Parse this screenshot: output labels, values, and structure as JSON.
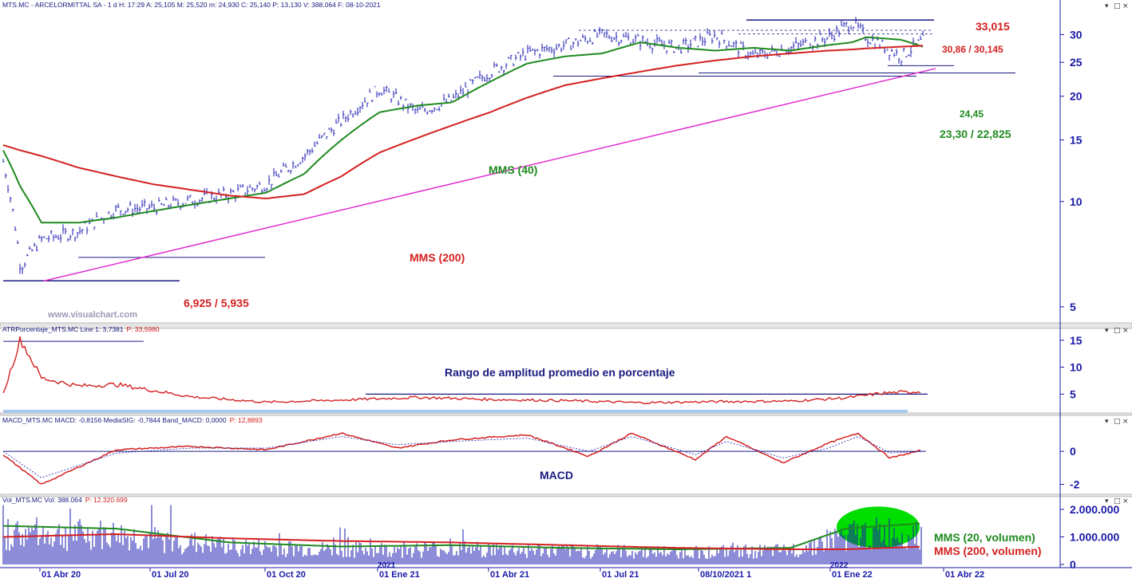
{
  "colors": {
    "price": "#1a1ab0",
    "mms40": "#1f8a1f",
    "mms200": "#d42020",
    "trend": "#e030d0",
    "atr": "#d42020",
    "macd": "#d42020",
    "signal": "#1a1ab0",
    "vol_bar": "#1a1ab0",
    "annotation_red": "#d42020",
    "annotation_green": "#1f8a1f",
    "annotation_blue": "#1a1a80",
    "axis": "#1a1aa8",
    "band": "#a8c8ee",
    "highlight": "#00dd00"
  },
  "panels": {
    "price": {
      "header": "MTS.MC - ARCELORMITTAL SA -  1 d  H: 17:29  A: 25,105  M: 25,520  m: 24,930  C: 25,140  P: 13,130  V: 388.064  F: 08-10-2021",
      "watermark": "www.visualchart.com",
      "labels": {
        "resistance": "33,015",
        "range_top": "30,86 / 30,145",
        "support_short": "24,45",
        "support": "23,30 / 22,825",
        "mms40": "MMS (40)",
        "mms200": "MMS (200)",
        "low": "6,925 / 5,935"
      }
    },
    "atr": {
      "header_name": "ATRPorcentaje_MTS.MC  Line 1: 3,7381",
      "header_p": "P: 33,5980",
      "title": "Rango de amplitud promedio en porcentaje"
    },
    "macd": {
      "header_name": "MACD_MTS.MC  MACD: -0,8156  MediaSIG: -0,7844  Band_MACD: 0,0000",
      "header_p": "P: 12,8893",
      "title": "MACD"
    },
    "volume": {
      "header_name": "Vol_MTS.MC  Vol: 388.064",
      "header_p": "P: 12.320.699",
      "label_mms20": "MMS (20, volumen)",
      "label_mms200": "MMS (200, volumen)"
    }
  },
  "controls": {
    "minimize": "▾",
    "restore": "□",
    "close": "×"
  },
  "x_axis": {
    "labels": [
      "01 Abr 20",
      "01 Jul 20",
      "01 Oct 20",
      "01 Ene 21",
      "01 Abr 21",
      "01 Jul 21",
      "08/10/2021 1",
      "01 Ene 22",
      "01 Abr 22"
    ],
    "year_markers": [
      "2021",
      "2022"
    ]
  },
  "chart_data": [
    {
      "type": "line",
      "name": "price",
      "y_scale": "log",
      "ylim": [
        4.5,
        35
      ],
      "y_ticks": [
        5,
        10,
        15,
        20,
        25,
        30
      ],
      "x_ticks": [
        "01 Abr 20",
        "01 Jul 20",
        "01 Oct 20",
        "01 Ene 21",
        "01 Abr 21",
        "01 Jul 21",
        "08/10/2021 1",
        "01 Ene 22",
        "01 Abr 22"
      ],
      "x": [
        "2020-03-01",
        "2020-03-15",
        "2020-04-01",
        "2020-05-01",
        "2020-06-01",
        "2020-07-01",
        "2020-08-01",
        "2020-09-01",
        "2020-10-01",
        "2020-11-01",
        "2020-12-01",
        "2021-01-01",
        "2021-02-01",
        "2021-03-01",
        "2021-04-01",
        "2021-05-01",
        "2021-06-01",
        "2021-07-01",
        "2021-08-01",
        "2021-09-01",
        "2021-10-01",
        "2021-11-01",
        "2021-12-01",
        "2022-01-01",
        "2022-01-20",
        "2022-02-01",
        "2022-03-01",
        "2022-03-20"
      ],
      "series": [
        {
          "name": "price",
          "values": [
            13.0,
            6.5,
            7.8,
            8.2,
            9.5,
            9.6,
            10.1,
            10.5,
            11.2,
            13.5,
            17.0,
            21.0,
            18.0,
            19.5,
            23.5,
            26.5,
            28.0,
            30.0,
            28.8,
            27.5,
            29.8,
            26.0,
            27.5,
            29.5,
            32.5,
            29.5,
            26.0,
            29.0
          ]
        },
        {
          "name": "MMS (40)",
          "values": [
            14.0,
            11.0,
            8.7,
            8.7,
            9.0,
            9.4,
            9.8,
            10.2,
            10.6,
            12.0,
            15.0,
            18.0,
            18.8,
            19.2,
            22.0,
            24.8,
            26.0,
            26.5,
            28.5,
            27.5,
            27.0,
            27.5,
            27.0,
            28.0,
            28.5,
            29.5,
            29.0,
            27.6
          ]
        },
        {
          "name": "MMS (200)",
          "values": [
            14.5,
            14.0,
            13.5,
            12.5,
            11.8,
            11.2,
            10.8,
            10.4,
            10.2,
            10.5,
            11.8,
            13.8,
            15.2,
            16.5,
            18.0,
            19.8,
            21.5,
            22.5,
            23.5,
            24.5,
            25.3,
            26.0,
            26.5,
            27.0,
            27.2,
            27.4,
            27.7,
            27.9
          ]
        }
      ],
      "annotations": [
        "33,015",
        "30,86 / 30,145",
        "24,45",
        "23,30 / 22,825",
        "6,925 / 5,935",
        "MMS (40)",
        "MMS (200)"
      ],
      "grid": false
    },
    {
      "type": "line",
      "name": "ATR %",
      "title": "Rango de amplitud promedio en porcentaje",
      "ylim": [
        1.5,
        16
      ],
      "y_ticks": [
        5,
        10,
        15
      ],
      "x": [
        "2020-03-01",
        "2020-03-15",
        "2020-04-01",
        "2020-05-01",
        "2020-06-01",
        "2020-08-01",
        "2020-10-01",
        "2020-12-01",
        "2021-02-01",
        "2021-04-01",
        "2021-06-01",
        "2021-08-01",
        "2021-10-01",
        "2021-12-01",
        "2022-01-15",
        "2022-02-15",
        "2022-03-20"
      ],
      "values": [
        5.0,
        15.2,
        8.0,
        6.5,
        6.8,
        4.5,
        3.5,
        3.9,
        4.4,
        4.0,
        3.8,
        3.4,
        3.6,
        3.7,
        4.3,
        5.2,
        5.5
      ]
    },
    {
      "type": "line",
      "name": "MACD",
      "title": "MACD",
      "ylim": [
        -2.6,
        1.6
      ],
      "y_ticks": [
        -2,
        0
      ],
      "x": [
        "2020-03-01",
        "2020-04-01",
        "2020-06-01",
        "2020-08-01",
        "2020-10-01",
        "2020-12-01",
        "2021-01-15",
        "2021-03-01",
        "2021-05-01",
        "2021-06-20",
        "2021-07-25",
        "2021-09-15",
        "2021-10-10",
        "2021-11-25",
        "2022-01-01",
        "2022-01-25",
        "2022-02-20",
        "2022-03-20"
      ],
      "series": [
        {
          "name": "MACD",
          "values": [
            -0.2,
            -2.0,
            0.1,
            0.3,
            0.1,
            1.1,
            0.2,
            0.7,
            1.0,
            -0.3,
            1.1,
            -0.5,
            0.9,
            -0.7,
            0.5,
            1.1,
            -0.4,
            0.1
          ]
        },
        {
          "name": "MediaSIG",
          "values": [
            0.0,
            -1.6,
            -0.1,
            0.2,
            0.2,
            0.9,
            0.4,
            0.6,
            0.8,
            0.0,
            0.9,
            -0.2,
            0.6,
            -0.4,
            0.2,
            0.9,
            -0.1,
            0.0
          ]
        }
      ]
    },
    {
      "type": "bar",
      "name": "Volumen",
      "ylim": [
        0,
        2200000
      ],
      "y_ticks": [
        0,
        1000000,
        2000000
      ],
      "x": [
        "2020-03-01",
        "2020-06-01",
        "2020-09-01",
        "2020-12-01",
        "2021-03-01",
        "2021-06-01",
        "2021-09-01",
        "2021-12-01",
        "2022-01-15",
        "2022-03-20"
      ],
      "series": [
        {
          "name": "MMS (20, volumen)",
          "values": [
            1400000,
            1300000,
            800000,
            650000,
            700000,
            600000,
            550000,
            600000,
            1300000,
            1500000
          ]
        },
        {
          "name": "MMS (200, volumen)",
          "values": [
            1000000,
            1100000,
            950000,
            850000,
            800000,
            700000,
            600000,
            550000,
            550000,
            650000
          ]
        }
      ]
    }
  ]
}
